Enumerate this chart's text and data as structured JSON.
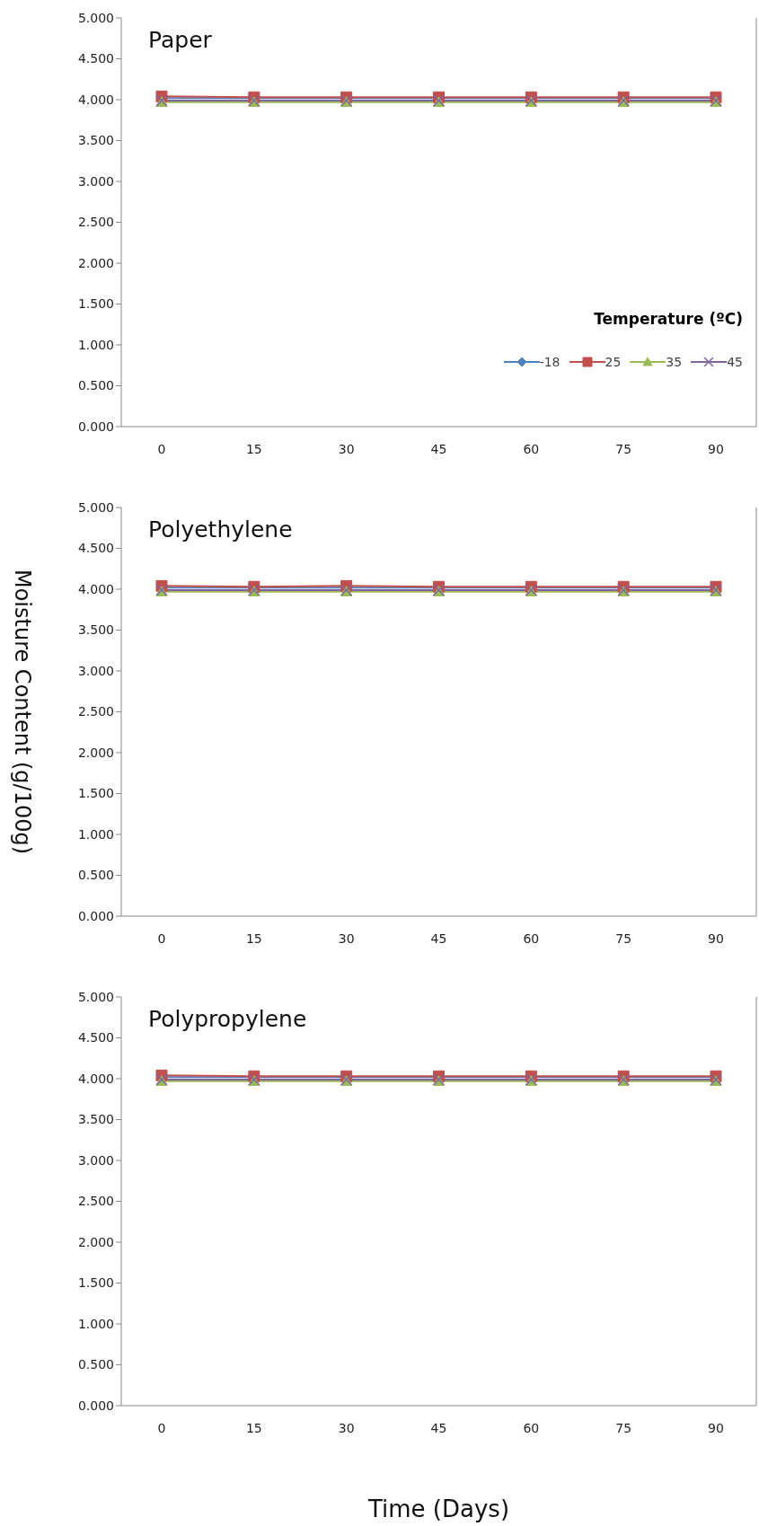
{
  "chart_data": [
    {
      "type": "line",
      "title": "Paper",
      "categories": [
        "0",
        "15",
        "30",
        "45",
        "60",
        "75",
        "90"
      ],
      "ylim": [
        0,
        5
      ],
      "yticks": [
        {
          "value": 0,
          "label": "0.000"
        },
        {
          "value": 0.5,
          "label": "0.500"
        },
        {
          "value": 1,
          "label": "1.000"
        },
        {
          "value": 1.5,
          "label": "1.500"
        },
        {
          "value": 2,
          "label": "2.000"
        },
        {
          "value": 2.5,
          "label": "2.500"
        },
        {
          "value": 3,
          "label": "3.000"
        },
        {
          "value": 3.5,
          "label": "3.500"
        },
        {
          "value": 4,
          "label": "4.000"
        },
        {
          "value": 4.5,
          "label": "4.500"
        },
        {
          "value": 5,
          "label": "5.000"
        }
      ],
      "grid": false,
      "legend": "bottom right",
      "legend_title": "Temperature (ºC)",
      "series": [
        {
          "name": "-18",
          "color": "#4f81bd",
          "marker": "diamond",
          "values": [
            4.02,
            4.02,
            4.02,
            4.02,
            4.02,
            4.02,
            4.02
          ]
        },
        {
          "name": "25",
          "color": "#c0504d",
          "marker": "square",
          "values": [
            4.04,
            4.03,
            4.03,
            4.03,
            4.03,
            4.03,
            4.03
          ]
        },
        {
          "name": "35",
          "color": "#9bbb59",
          "marker": "triangle",
          "values": [
            3.97,
            3.97,
            3.97,
            3.97,
            3.97,
            3.97,
            3.97
          ]
        },
        {
          "name": "45",
          "color": "#8064a2",
          "marker": "cross",
          "values": [
            3.99,
            3.99,
            3.99,
            3.99,
            3.99,
            3.99,
            3.99
          ]
        }
      ]
    },
    {
      "type": "line",
      "title": "Polyethylene",
      "ylabel": "Moisture Content (g/100g)",
      "categories": [
        "0",
        "15",
        "30",
        "45",
        "60",
        "75",
        "90"
      ],
      "ylim": [
        0,
        5
      ],
      "yticks": [
        {
          "value": 0,
          "label": "0.000"
        },
        {
          "value": 0.5,
          "label": "0.500"
        },
        {
          "value": 1,
          "label": "1.000"
        },
        {
          "value": 1.5,
          "label": "1.500"
        },
        {
          "value": 2,
          "label": "2.000"
        },
        {
          "value": 2.5,
          "label": "2.500"
        },
        {
          "value": 3,
          "label": "3.000"
        },
        {
          "value": 3.5,
          "label": "3.500"
        },
        {
          "value": 4,
          "label": "4.000"
        },
        {
          "value": 4.5,
          "label": "4.500"
        },
        {
          "value": 5,
          "label": "5.000"
        }
      ],
      "grid": false,
      "legend": false,
      "series": [
        {
          "color": "#4f81bd",
          "marker": "diamond",
          "values": [
            4.02,
            4.02,
            4.02,
            4.02,
            4.02,
            4.02,
            4.02
          ]
        },
        {
          "color": "#c0504d",
          "marker": "square",
          "values": [
            4.04,
            4.03,
            4.04,
            4.03,
            4.03,
            4.03,
            4.03
          ]
        },
        {
          "color": "#9bbb59",
          "marker": "triangle",
          "values": [
            3.97,
            3.97,
            3.97,
            3.97,
            3.97,
            3.97,
            3.97
          ]
        },
        {
          "color": "#8064a2",
          "marker": "cross",
          "values": [
            3.99,
            3.99,
            3.99,
            3.99,
            3.99,
            3.99,
            3.99
          ]
        }
      ]
    },
    {
      "type": "line",
      "title": "Polypropylene",
      "xlabel": "Time (Days)",
      "categories": [
        "0",
        "15",
        "30",
        "45",
        "60",
        "75",
        "90"
      ],
      "ylim": [
        0,
        5
      ],
      "yticks": [
        {
          "value": 0,
          "label": "0.000"
        },
        {
          "value": 0.5,
          "label": "0.500"
        },
        {
          "value": 1,
          "label": "1.000"
        },
        {
          "value": 1.5,
          "label": "1.500"
        },
        {
          "value": 2,
          "label": "2.000"
        },
        {
          "value": 2.5,
          "label": "2.500"
        },
        {
          "value": 3,
          "label": "3.000"
        },
        {
          "value": 3.5,
          "label": "3.500"
        },
        {
          "value": 4,
          "label": "4.000"
        },
        {
          "value": 4.5,
          "label": "4.500"
        },
        {
          "value": 5,
          "label": "5.000"
        }
      ],
      "grid": false,
      "legend": false,
      "series": [
        {
          "color": "#4f81bd",
          "marker": "diamond",
          "values": [
            4.02,
            4.02,
            4.02,
            4.02,
            4.02,
            4.02,
            4.02
          ]
        },
        {
          "color": "#c0504d",
          "marker": "square",
          "values": [
            4.04,
            4.03,
            4.03,
            4.03,
            4.03,
            4.03,
            4.03
          ]
        },
        {
          "color": "#9bbb59",
          "marker": "triangle",
          "values": [
            3.97,
            3.97,
            3.97,
            3.97,
            3.97,
            3.97,
            3.97
          ]
        },
        {
          "color": "#8064a2",
          "marker": "cross",
          "values": [
            3.99,
            3.99,
            3.99,
            3.99,
            3.99,
            3.99,
            3.99
          ]
        }
      ]
    }
  ]
}
